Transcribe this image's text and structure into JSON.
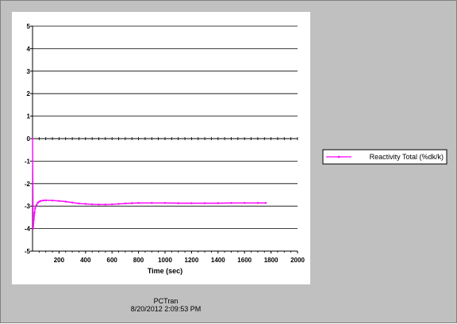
{
  "footer": {
    "app_name": "PCTran",
    "timestamp": "8/20/2012 2:09:53 PM"
  },
  "colors": {
    "series": "#ff00ff",
    "plot_background": "#ffffff",
    "frame_background": "#c0c0c0"
  },
  "chart_data": {
    "type": "line",
    "title": "",
    "xlabel": "Time (sec)",
    "ylabel": "",
    "xlim": [
      0,
      2000
    ],
    "ylim": [
      -5,
      5
    ],
    "xticks": [
      200,
      400,
      600,
      800,
      1000,
      1200,
      1400,
      1600,
      1800,
      2000
    ],
    "yticks": [
      5,
      4,
      3,
      2,
      1,
      0,
      -1,
      -2,
      -3,
      -4,
      -5
    ],
    "grid": "horizontal",
    "legend": "right",
    "series": [
      {
        "name": "Reactivity Total (%dk/k)",
        "color": "#ff00ff",
        "x": [
          0,
          5,
          10,
          15,
          20,
          30,
          40,
          50,
          60,
          80,
          100,
          150,
          200,
          250,
          300,
          350,
          400,
          450,
          500,
          550,
          600,
          650,
          700,
          750,
          800,
          900,
          1000,
          1100,
          1200,
          1300,
          1400,
          1500,
          1600,
          1700,
          1760
        ],
        "y": [
          0,
          -4.0,
          -3.6,
          -3.3,
          -3.1,
          -2.95,
          -2.85,
          -2.8,
          -2.77,
          -2.75,
          -2.74,
          -2.75,
          -2.77,
          -2.8,
          -2.84,
          -2.88,
          -2.9,
          -2.92,
          -2.93,
          -2.93,
          -2.92,
          -2.9,
          -2.88,
          -2.87,
          -2.86,
          -2.86,
          -2.86,
          -2.87,
          -2.87,
          -2.87,
          -2.87,
          -2.86,
          -2.86,
          -2.86,
          -2.86
        ]
      }
    ]
  }
}
